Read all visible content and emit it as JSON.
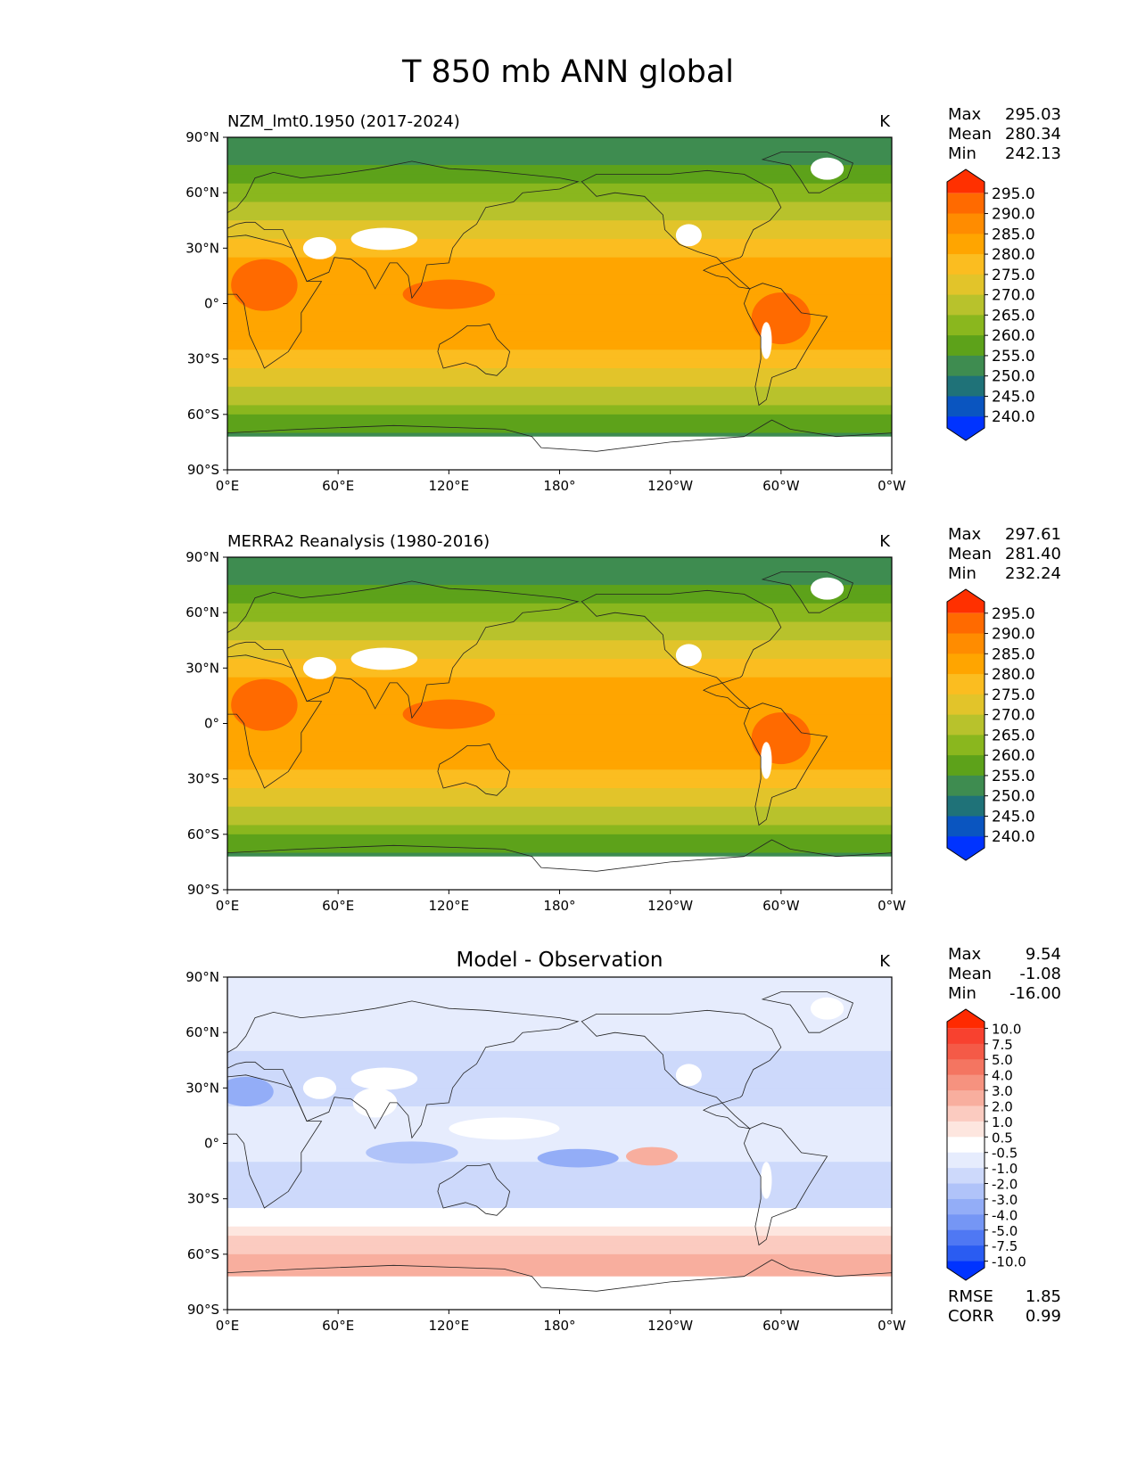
{
  "figure_title": "T 850 mb ANN global",
  "units_label": "K",
  "chart_data": [
    {
      "type": "heatmap",
      "panel": "model",
      "title": "NZM_lmt0.1950 (2017-2024)",
      "units": "K",
      "stats": {
        "max_label": "Max",
        "max": "295.03",
        "mean_label": "Mean",
        "mean": "280.34",
        "min_label": "Min",
        "min": "242.13"
      },
      "colorbar": {
        "levels": [
          "295.0",
          "290.0",
          "285.0",
          "280.0",
          "275.0",
          "270.0",
          "265.0",
          "260.0",
          "255.0",
          "250.0",
          "245.0",
          "240.0"
        ],
        "colors": [
          "#ff3000",
          "#ff6a00",
          "#ff8c00",
          "#ffa500",
          "#fbbd20",
          "#e2c42a",
          "#b8c22c",
          "#8ab71e",
          "#5da21a",
          "#3e8c50",
          "#1f7278",
          "#0a55c0",
          "#0033ff"
        ]
      },
      "ylim": [
        -90,
        90
      ],
      "xticks": [
        "0°E",
        "60°E",
        "120°E",
        "180°",
        "120°W",
        "60°W",
        "0°W"
      ],
      "yticks": [
        "90°N",
        "60°N",
        "30°N",
        "0°",
        "30°S",
        "60°S",
        "90°S"
      ]
    },
    {
      "type": "heatmap",
      "panel": "obs",
      "title": "MERRA2 Reanalysis (1980-2016)",
      "units": "K",
      "stats": {
        "max_label": "Max",
        "max": "297.61",
        "mean_label": "Mean",
        "mean": "281.40",
        "min_label": "Min",
        "min": "232.24"
      },
      "colorbar": {
        "levels": [
          "295.0",
          "290.0",
          "285.0",
          "280.0",
          "275.0",
          "270.0",
          "265.0",
          "260.0",
          "255.0",
          "250.0",
          "245.0",
          "240.0"
        ],
        "colors": [
          "#ff3000",
          "#ff6a00",
          "#ff8c00",
          "#ffa500",
          "#fbbd20",
          "#e2c42a",
          "#b8c22c",
          "#8ab71e",
          "#5da21a",
          "#3e8c50",
          "#1f7278",
          "#0a55c0",
          "#0033ff"
        ]
      },
      "ylim": [
        -90,
        90
      ],
      "xticks": [
        "0°E",
        "60°E",
        "120°E",
        "180°",
        "120°W",
        "60°W",
        "0°W"
      ],
      "yticks": [
        "90°N",
        "60°N",
        "30°N",
        "0°",
        "30°S",
        "60°S",
        "90°S"
      ]
    },
    {
      "type": "heatmap",
      "panel": "diff",
      "title": "Model - Observation",
      "units": "K",
      "stats": {
        "max_label": "Max",
        "max": "9.54",
        "mean_label": "Mean",
        "mean": "-1.08",
        "min_label": "Min",
        "min": "-16.00"
      },
      "metrics": {
        "rmse_label": "RMSE",
        "rmse": "1.85",
        "corr_label": "CORR",
        "corr": "0.99"
      },
      "colorbar": {
        "levels": [
          "10.0",
          "7.5",
          "5.0",
          "4.0",
          "3.0",
          "2.0",
          "1.0",
          "0.5",
          "-0.5",
          "-1.0",
          "-2.0",
          "-3.0",
          "-4.0",
          "-5.0",
          "-7.5",
          "-10.0"
        ],
        "colors": [
          "#ff2a00",
          "#f8412f",
          "#f45a47",
          "#f47561",
          "#f6927f",
          "#f8ae9e",
          "#fbcbc0",
          "#fde6df",
          "#ffffff",
          "#e6ecfd",
          "#cdd9fb",
          "#b0c3f9",
          "#93adf7",
          "#7596f5",
          "#4f78f3",
          "#2a5cf2",
          "#0033ff"
        ]
      },
      "ylim": [
        -90,
        90
      ],
      "xticks": [
        "0°E",
        "60°E",
        "120°E",
        "180°",
        "120°W",
        "60°W",
        "0°W"
      ],
      "yticks": [
        "90°N",
        "60°N",
        "30°N",
        "0°",
        "30°S",
        "60°S",
        "90°S"
      ]
    }
  ]
}
